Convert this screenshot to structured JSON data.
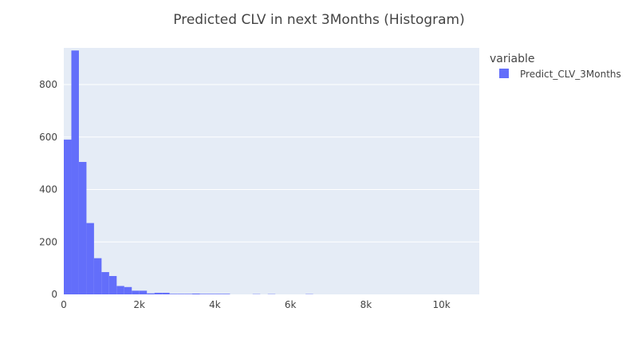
{
  "chart_data": {
    "type": "bar",
    "title": "Predicted CLV in next 3Months (Histogram)",
    "xlabel": "",
    "ylabel": "",
    "xlim": [
      0,
      11000
    ],
    "ylim": [
      0,
      940
    ],
    "x_ticks": [
      0,
      2000,
      4000,
      6000,
      8000,
      10000
    ],
    "x_tick_labels": [
      "0",
      "2k",
      "4k",
      "6k",
      "8k",
      "10k"
    ],
    "y_ticks": [
      0,
      200,
      400,
      600,
      800
    ],
    "y_tick_labels": [
      "0",
      "200",
      "400",
      "600",
      "800"
    ],
    "grid": true,
    "legend": {
      "title": "variable",
      "position": "top-right"
    },
    "bin_width": 200,
    "series": [
      {
        "name": "Predict_CLV_3Months",
        "color": "#636efa",
        "bins": [
          {
            "x0": 0,
            "count": 590
          },
          {
            "x0": 200,
            "count": 930
          },
          {
            "x0": 400,
            "count": 505
          },
          {
            "x0": 600,
            "count": 272
          },
          {
            "x0": 800,
            "count": 138
          },
          {
            "x0": 1000,
            "count": 85
          },
          {
            "x0": 1200,
            "count": 70
          },
          {
            "x0": 1400,
            "count": 32
          },
          {
            "x0": 1600,
            "count": 28
          },
          {
            "x0": 1800,
            "count": 14
          },
          {
            "x0": 2000,
            "count": 14
          },
          {
            "x0": 2200,
            "count": 4
          },
          {
            "x0": 2400,
            "count": 6
          },
          {
            "x0": 2600,
            "count": 6
          },
          {
            "x0": 2800,
            "count": 2
          },
          {
            "x0": 3000,
            "count": 2
          },
          {
            "x0": 3200,
            "count": 2
          },
          {
            "x0": 3400,
            "count": 3
          },
          {
            "x0": 3600,
            "count": 2
          },
          {
            "x0": 3800,
            "count": 2
          },
          {
            "x0": 4000,
            "count": 2
          },
          {
            "x0": 4200,
            "count": 2
          },
          {
            "x0": 5000,
            "count": 1
          },
          {
            "x0": 5400,
            "count": 1
          },
          {
            "x0": 6400,
            "count": 1
          }
        ]
      }
    ]
  }
}
